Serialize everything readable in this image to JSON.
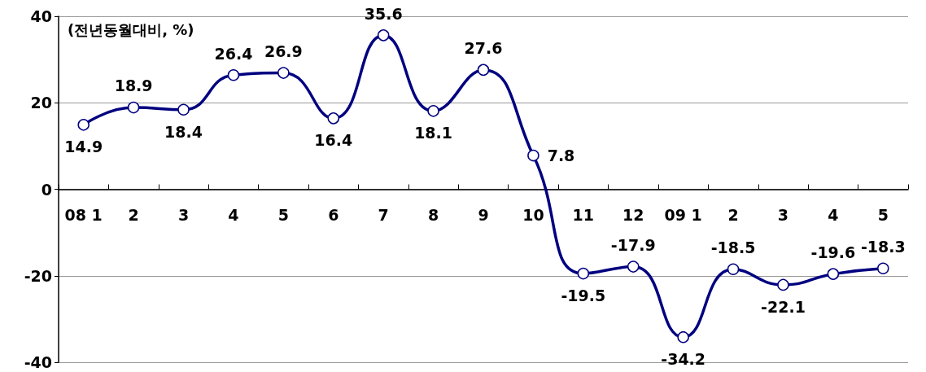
{
  "chart_data": {
    "type": "line",
    "categories": [
      "08 1",
      "2",
      "3",
      "4",
      "5",
      "6",
      "7",
      "8",
      "9",
      "10",
      "11",
      "12",
      "09 1",
      "2",
      "3",
      "4",
      "5"
    ],
    "series": [
      {
        "color": "#000080",
        "values": [
          14.9,
          18.9,
          18.4,
          26.4,
          26.9,
          16.4,
          35.6,
          18.1,
          27.6,
          7.8,
          -19.5,
          -17.9,
          -34.2,
          -18.5,
          -22.1,
          -19.6,
          -18.3
        ]
      }
    ],
    "ylim": [
      -40,
      40
    ],
    "yticks": [
      -40,
      -20,
      0,
      20,
      40
    ],
    "annotations": [
      "(전년동월대비, %)"
    ],
    "data_labels": true,
    "grid": "y",
    "marker": "circle",
    "line_style": "solid"
  }
}
